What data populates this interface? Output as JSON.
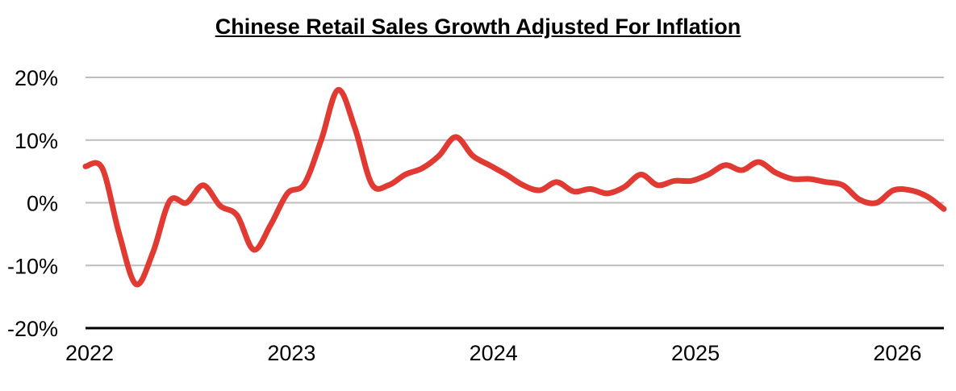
{
  "chart_data": {
    "type": "line",
    "title": "Chinese Retail Sales Growth Adjusted For Inflation",
    "xlabel": "",
    "ylabel": "",
    "ylim": [
      -20,
      20
    ],
    "xlim": [
      2022.0,
      2026.25
    ],
    "grid": true,
    "y_ticks": [
      20,
      10,
      0,
      -10,
      -20
    ],
    "y_tick_labels": [
      "20%",
      "10%",
      "0%",
      "-10%",
      "-20%"
    ],
    "x_ticks": [
      2022,
      2023,
      2024,
      2025,
      2026
    ],
    "x_tick_labels": [
      "2022",
      "2023",
      "2024",
      "2025",
      "2026"
    ],
    "series": [
      {
        "color": "#e03a33",
        "x": [
          2022.0,
          2022.083,
          2022.167,
          2022.25,
          2022.333,
          2022.417,
          2022.5,
          2022.583,
          2022.667,
          2022.75,
          2022.833,
          2022.917,
          2023.0,
          2023.083,
          2023.167,
          2023.25,
          2023.333,
          2023.417,
          2023.5,
          2023.583,
          2023.667,
          2023.75,
          2023.833,
          2023.917,
          2024.0,
          2024.083,
          2024.167,
          2024.25,
          2024.333,
          2024.417,
          2024.5,
          2024.583,
          2024.667,
          2024.75,
          2024.833,
          2024.917,
          2025.0,
          2025.083,
          2025.167,
          2025.25,
          2025.333,
          2025.417,
          2025.5,
          2025.583,
          2025.667,
          2025.75,
          2025.833,
          2025.917,
          2026.0,
          2026.083,
          2026.167,
          2026.25
        ],
        "values": [
          5.8,
          5.5,
          -5.0,
          -13.0,
          -8.0,
          0.3,
          0,
          2.8,
          -0.5,
          -2.0,
          -7.5,
          -3.5,
          1.5,
          3.0,
          10.0,
          18.0,
          12.0,
          3.0,
          2.8,
          4.5,
          5.5,
          7.5,
          10.5,
          7.5,
          6.0,
          4.5,
          2.8,
          2.0,
          3.3,
          1.8,
          2.2,
          1.5,
          2.5,
          4.5,
          2.8,
          3.5,
          3.5,
          4.5,
          6.0,
          5.2,
          6.5,
          4.8,
          3.8,
          3.8,
          3.3,
          2.8,
          0.5,
          0.0,
          2.0,
          2.0,
          1.0,
          -1.0
        ]
      }
    ]
  }
}
